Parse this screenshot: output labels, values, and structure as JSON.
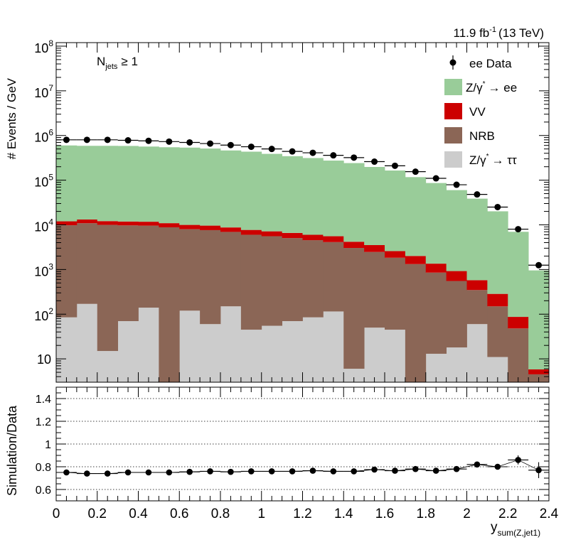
{
  "header": {
    "lumi": "11.9 fb",
    "lumi_exp": "-1",
    "energy": "(13 TeV)",
    "category_main": "N",
    "category_sub": "jets",
    "category_cond": "≥ 1"
  },
  "legend": {
    "items": [
      {
        "key": "data",
        "label": "ee Data",
        "color": "#000000"
      },
      {
        "key": "zee",
        "label": "Z/γ",
        "label_sup": "*",
        "label_tail": "→ ee",
        "color": "#99cc99"
      },
      {
        "key": "vv",
        "label": "VV",
        "color": "#cc0000"
      },
      {
        "key": "nrb",
        "label": "NRB",
        "color": "#8b6656"
      },
      {
        "key": "ztt",
        "label": "Z/γ",
        "label_sup": "*",
        "label_tail": "→ ττ",
        "color": "#cccccc"
      }
    ]
  },
  "axes": {
    "ylabel_top": "# Events / GeV",
    "ylabel_bottom": "Simulation/Data",
    "xlabel_main": "y",
    "xlabel_sub": "sum(Z,jet1)",
    "x_ticks": [
      "0",
      "0.2",
      "0.4",
      "0.6",
      "0.8",
      "1",
      "1.2",
      "1.4",
      "1.6",
      "1.8",
      "2",
      "2.2",
      "2.4"
    ],
    "y_ticks_top": [
      {
        "base": "10",
        "exp": "",
        "value": 10
      },
      {
        "base": "10",
        "exp": "2",
        "value": 100
      },
      {
        "base": "10",
        "exp": "3",
        "value": 1000
      },
      {
        "base": "10",
        "exp": "4",
        "value": 10000
      },
      {
        "base": "10",
        "exp": "5",
        "value": 100000
      },
      {
        "base": "10",
        "exp": "6",
        "value": 1000000
      },
      {
        "base": "10",
        "exp": "7",
        "value": 10000000
      },
      {
        "base": "10",
        "exp": "8",
        "value": 100000000
      }
    ],
    "y_ticks_bottom": [
      "0.6",
      "0.8",
      "1",
      "1.2",
      "1.4"
    ]
  },
  "chart_data": [
    {
      "type": "bar",
      "stacked": true,
      "log_y": true,
      "xlim": [
        0,
        2.4
      ],
      "ylim": [
        3,
        120000000
      ],
      "bin_edges": [
        0,
        0.1,
        0.2,
        0.3,
        0.4,
        0.5,
        0.6,
        0.7,
        0.8,
        0.9,
        1.0,
        1.1,
        1.2,
        1.3,
        1.4,
        1.5,
        1.6,
        1.7,
        1.8,
        1.9,
        2.0,
        2.1,
        2.2,
        2.3,
        2.4
      ],
      "stack_order": [
        "ztt",
        "nrb",
        "vv",
        "zee"
      ],
      "series": [
        {
          "name": "Z/γ* → ττ",
          "key": "ztt",
          "color": "#cccccc",
          "values": [
            85,
            170,
            15,
            70,
            140,
            2,
            120,
            60,
            150,
            45,
            55,
            70,
            85,
            115,
            6,
            50,
            45,
            2,
            13,
            18,
            60,
            11,
            2,
            2
          ]
        },
        {
          "name": "NRB",
          "key": "nrb",
          "color": "#8b6656",
          "values": [
            9700,
            10700,
            9950,
            9650,
            9450,
            8800,
            7850,
            7550,
            6800,
            5950,
            5500,
            4980,
            4450,
            3990,
            3030,
            2420,
            1790,
            1320,
            840,
            535,
            287,
            139,
            46,
            2.5
          ]
        },
        {
          "name": "VV",
          "key": "vv",
          "color": "#cc0000",
          "values": [
            2200,
            2300,
            2150,
            2150,
            2150,
            2100,
            2000,
            2000,
            1800,
            1700,
            1600,
            1550,
            1450,
            1450,
            1150,
            1050,
            750,
            690,
            500,
            370,
            230,
            135,
            39,
            1.3
          ]
        },
        {
          "name": "Z/γ* → ee",
          "key": "zee",
          "color": "#99cc99",
          "values": [
            587000,
            574000,
            575000,
            572000,
            554000,
            535000,
            526000,
            501000,
            454000,
            427000,
            381000,
            338000,
            307000,
            269000,
            237000,
            194000,
            162000,
            115000,
            85000,
            59000,
            38000,
            19800,
            6900,
            950
          ]
        }
      ],
      "data": {
        "name": "ee Data",
        "x": [
          0.05,
          0.15,
          0.25,
          0.35,
          0.45,
          0.55,
          0.65,
          0.75,
          0.85,
          0.95,
          1.05,
          1.15,
          1.25,
          1.35,
          1.45,
          1.55,
          1.65,
          1.75,
          1.85,
          1.95,
          2.05,
          2.15,
          2.25,
          2.35
        ],
        "y": [
          800000,
          800000,
          800000,
          780000,
          760000,
          730000,
          700000,
          660000,
          610000,
          560000,
          500000,
          440000,
          410000,
          360000,
          320000,
          260000,
          210000,
          155000,
          110000,
          79000,
          48000,
          25000,
          8000,
          1250
        ]
      }
    },
    {
      "type": "scatter",
      "xlim": [
        0,
        2.4
      ],
      "ylim": [
        0.5,
        1.5
      ],
      "ylabel": "Simulation/Data",
      "reference_lines": [
        0.6,
        0.8,
        1.0,
        1.2,
        1.4
      ],
      "x": [
        0.05,
        0.15,
        0.25,
        0.35,
        0.45,
        0.55,
        0.65,
        0.75,
        0.85,
        0.95,
        1.05,
        1.15,
        1.25,
        1.35,
        1.45,
        1.55,
        1.65,
        1.75,
        1.85,
        1.95,
        2.05,
        2.15,
        2.25,
        2.35
      ],
      "y": [
        0.75,
        0.74,
        0.74,
        0.75,
        0.75,
        0.75,
        0.755,
        0.76,
        0.755,
        0.76,
        0.76,
        0.76,
        0.765,
        0.76,
        0.76,
        0.775,
        0.765,
        0.78,
        0.765,
        0.78,
        0.82,
        0.8,
        0.86,
        0.77
      ],
      "yerr": [
        0.005,
        0.005,
        0.005,
        0.005,
        0.005,
        0.005,
        0.005,
        0.005,
        0.005,
        0.005,
        0.005,
        0.005,
        0.005,
        0.005,
        0.005,
        0.006,
        0.007,
        0.008,
        0.01,
        0.012,
        0.015,
        0.02,
        0.04,
        0.07
      ]
    }
  ]
}
